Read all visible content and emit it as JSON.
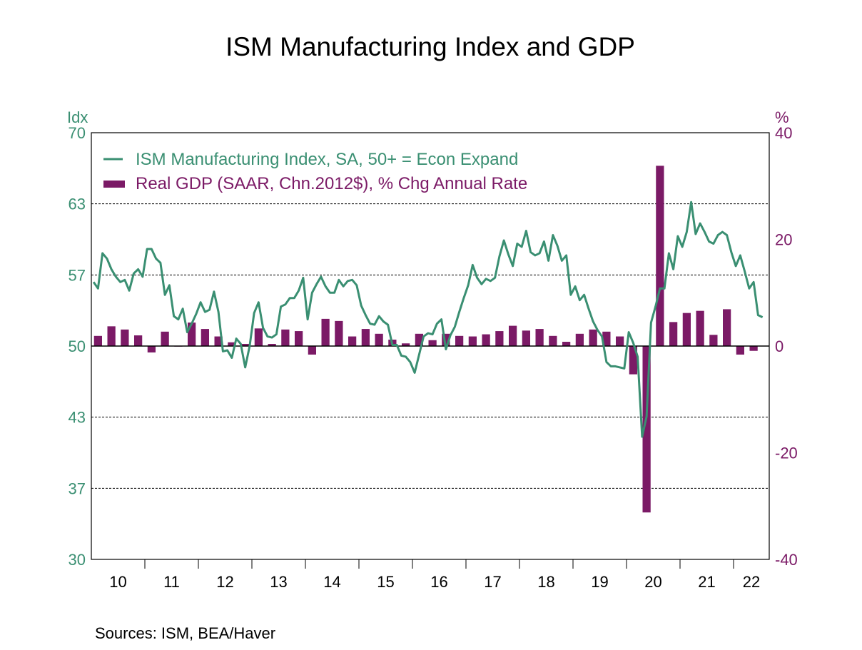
{
  "chart_data": {
    "type": "bar+line",
    "title": "ISM Manufacturing Index and GDP",
    "left_axis": {
      "unit_label": "Idx",
      "range": [
        30,
        70
      ],
      "tick_labels": [
        "70",
        "63",
        "57",
        "50",
        "43",
        "37",
        "30"
      ]
    },
    "right_axis": {
      "unit_label": "%",
      "range": [
        -40,
        40
      ],
      "tick_labels": [
        "40",
        "20",
        "0",
        "-20",
        "-40"
      ]
    },
    "x_axis": {
      "tick_labels": [
        "10",
        "11",
        "12",
        "13",
        "14",
        "15",
        "16",
        "17",
        "18",
        "19",
        "20",
        "21",
        "22"
      ],
      "start": "2010-01",
      "end": "2022-08"
    },
    "grid": "horizontal dashed",
    "legend_position": "top-left",
    "source": "Sources:  ISM, BEA/Haver",
    "series": [
      {
        "name": "ISM Manufacturing Index, SA, 50+ = Econ Expand",
        "type": "line",
        "axis": "left",
        "frequency": "monthly",
        "start": "2010-01",
        "color": "#3a8f72",
        "values": [
          56.0,
          55.4,
          58.7,
          58.2,
          57.2,
          56.5,
          56.0,
          56.2,
          55.2,
          56.8,
          57.2,
          56.5,
          59.1,
          59.1,
          58.2,
          57.8,
          54.8,
          55.7,
          52.8,
          52.5,
          53.5,
          51.3,
          52.1,
          53.0,
          54.1,
          53.2,
          53.4,
          55.1,
          53.2,
          49.5,
          49.6,
          48.9,
          50.7,
          50.2,
          48.0,
          50.0,
          53.1,
          54.1,
          51.7,
          50.9,
          50.8,
          51.1,
          53.7,
          53.9,
          54.5,
          54.5,
          55.2,
          56.4,
          52.5,
          55.0,
          55.8,
          56.5,
          55.6,
          55.0,
          55.0,
          56.2,
          55.6,
          56.1,
          56.2,
          55.7,
          53.8,
          52.9,
          52.1,
          52.0,
          52.8,
          52.3,
          52.0,
          50.1,
          50.1,
          49.1,
          49.0,
          48.5,
          47.5,
          49.2,
          50.9,
          51.2,
          51.1,
          52.1,
          52.5,
          49.7,
          51.0,
          51.8,
          53.2,
          54.5,
          55.7,
          57.6,
          56.4,
          55.8,
          56.3,
          56.1,
          56.4,
          58.4,
          59.9,
          58.6,
          57.5,
          59.6,
          59.3,
          60.8,
          58.8,
          58.5,
          58.7,
          59.8,
          58.0,
          60.4,
          59.4,
          58.0,
          58.5,
          54.8,
          55.6,
          54.3,
          54.8,
          53.5,
          52.3,
          51.5,
          50.9,
          48.5,
          48.1,
          48.1,
          48.0,
          47.9,
          51.3,
          50.3,
          49.0,
          41.5,
          43.4,
          52.2,
          53.7,
          55.4,
          55.4,
          58.7,
          57.2,
          60.3,
          59.3,
          60.7,
          63.5,
          60.5,
          61.5,
          60.7,
          59.8,
          59.6,
          60.4,
          60.7,
          60.4,
          58.8,
          57.5,
          58.5,
          57.0,
          55.4,
          56.0,
          52.9,
          52.7
        ]
      },
      {
        "name": "Real GDP (SAAR, Chn.2012$), % Chg Annual Rate",
        "type": "bar",
        "axis": "right",
        "frequency": "quarterly",
        "start": "2010-Q1",
        "color": "#7b1a66",
        "values": [
          1.9,
          3.7,
          3.1,
          2.0,
          -1.2,
          2.7,
          -0.1,
          4.4,
          3.2,
          1.8,
          0.7,
          0.4,
          3.3,
          0.4,
          3.1,
          2.8,
          -1.6,
          5.1,
          4.7,
          1.8,
          3.2,
          2.3,
          1.2,
          0.5,
          2.3,
          1.1,
          2.3,
          1.9,
          1.8,
          2.2,
          2.8,
          3.8,
          2.9,
          3.2,
          1.9,
          0.8,
          2.3,
          3.1,
          2.7,
          1.8,
          -5.3,
          -31.2,
          33.8,
          4.5,
          6.2,
          6.6,
          2.1,
          6.9,
          -1.6,
          -0.9
        ]
      }
    ]
  }
}
